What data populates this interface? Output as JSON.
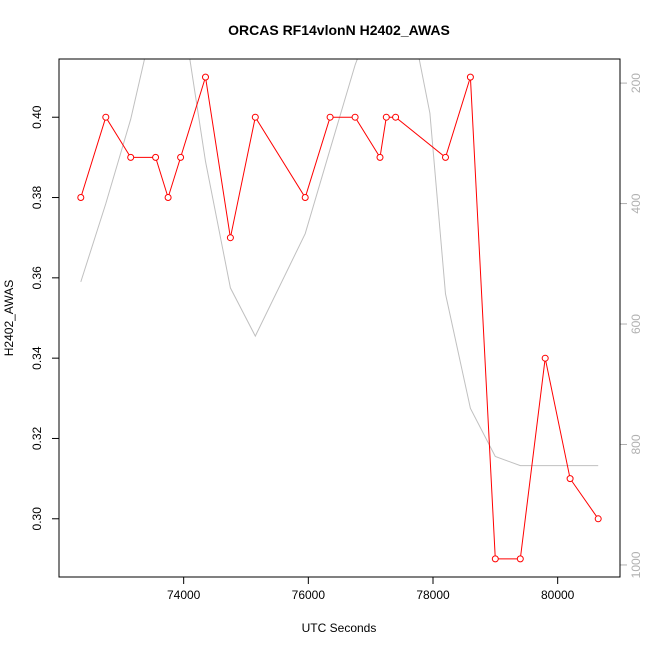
{
  "chart_data": {
    "type": "line",
    "title": "ORCAS RF14vlonN H2402_AWAS",
    "xlabel": "UTC Seconds",
    "ylabel": "H2402_AWAS",
    "xlim": [
      72000,
      81000
    ],
    "ylim": [
      0.2855,
      0.4145
    ],
    "x_ticks": [
      74000,
      76000,
      78000,
      80000
    ],
    "x_tick_labels": [
      "74000",
      "76000",
      "78000",
      "80000"
    ],
    "y_ticks": [
      0.3,
      0.32,
      0.34,
      0.36,
      0.38,
      0.4
    ],
    "y_tick_labels": [
      "0.30",
      "0.32",
      "0.34",
      "0.36",
      "0.38",
      "0.40"
    ],
    "y2_reversed": true,
    "y2lim": [
      160,
      1020
    ],
    "y2_ticks": [
      200,
      400,
      600,
      800,
      1000
    ],
    "y2_tick_labels": [
      "200",
      "400",
      "600",
      "800",
      "1000"
    ],
    "grid": false,
    "series": [
      {
        "color": "#ff0000",
        "axis": "left",
        "marker": "open-circle",
        "x": [
          72350,
          72750,
          73150,
          73550,
          73750,
          73950,
          74350,
          74750,
          75150,
          75950,
          76350,
          76750,
          77150,
          77250,
          77400,
          78200,
          78600,
          79000,
          79400,
          79800,
          80200,
          80650
        ],
        "y": [
          0.38,
          0.4,
          0.39,
          0.39,
          0.38,
          0.39,
          0.41,
          0.37,
          0.4,
          0.38,
          0.4,
          0.4,
          0.39,
          0.4,
          0.4,
          0.39,
          0.41,
          0.29,
          0.29,
          0.34,
          0.31,
          0.3
        ]
      },
      {
        "color": "#c0c0c0",
        "axis": "right",
        "marker": "none",
        "x": [
          72350,
          72750,
          73150,
          73550,
          73950,
          74350,
          74750,
          75150,
          75950,
          76350,
          76750,
          77150,
          77550,
          77950,
          78200,
          78600,
          79000,
          79400,
          79800,
          80200,
          80650
        ],
        "y": [
          530,
          400,
          260,
          80,
          60,
          330,
          540,
          620,
          450,
          310,
          170,
          60,
          40,
          250,
          550,
          740,
          820,
          835,
          835,
          835,
          835
        ]
      }
    ]
  }
}
